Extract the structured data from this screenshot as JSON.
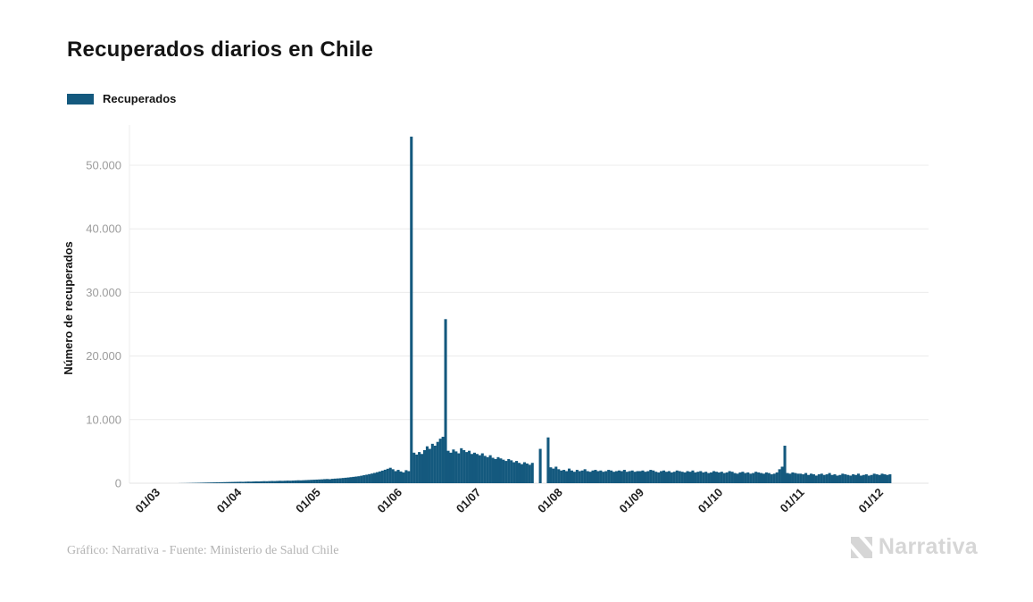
{
  "title": "Recuperados diarios en Chile",
  "legend": {
    "label": "Recuperados",
    "color": "#14597e"
  },
  "footer": {
    "credit": "Gráfico: Narrativa - Fuente: Ministerio de Salud Chile"
  },
  "logo": {
    "text": "Narrativa",
    "color": "#d6d6d6"
  },
  "chart_data": {
    "type": "bar",
    "title": "Recuperados diarios en Chile",
    "xlabel": "",
    "ylabel": "Número de recuperados",
    "series_name": "Recuperados",
    "bar_color": "#14597e",
    "grid": true,
    "legend_position": "top-left",
    "ylim": [
      0,
      55000
    ],
    "y_ticks": [
      {
        "value": 0,
        "label": "0"
      },
      {
        "value": 10000,
        "label": "10.000"
      },
      {
        "value": 20000,
        "label": "20.000"
      },
      {
        "value": 30000,
        "label": "30.000"
      },
      {
        "value": 40000,
        "label": "40.000"
      },
      {
        "value": 50000,
        "label": "50.000"
      }
    ],
    "x_unit": "day",
    "x_ticks": [
      {
        "day": 0,
        "label": "01/03"
      },
      {
        "day": 31,
        "label": "01/04"
      },
      {
        "day": 61,
        "label": "01/05"
      },
      {
        "day": 92,
        "label": "01/06"
      },
      {
        "day": 122,
        "label": "01/07"
      },
      {
        "day": 153,
        "label": "01/08"
      },
      {
        "day": 184,
        "label": "01/09"
      },
      {
        "day": 214,
        "label": "01/10"
      },
      {
        "day": 245,
        "label": "01/11"
      },
      {
        "day": 275,
        "label": "01/12"
      }
    ],
    "series": [
      {
        "name": "Recuperados",
        "values": [
          0,
          0,
          0,
          0,
          0,
          0,
          0,
          0,
          0,
          10,
          15,
          20,
          30,
          40,
          50,
          60,
          70,
          80,
          90,
          100,
          110,
          120,
          130,
          140,
          150,
          160,
          170,
          180,
          190,
          200,
          210,
          220,
          230,
          220,
          240,
          260,
          250,
          270,
          290,
          280,
          300,
          320,
          310,
          330,
          350,
          340,
          360,
          380,
          370,
          390,
          410,
          400,
          420,
          440,
          460,
          450,
          470,
          490,
          510,
          530,
          550,
          570,
          590,
          610,
          640,
          660,
          630,
          690,
          720,
          750,
          780,
          820,
          860,
          900,
          950,
          1000,
          1050,
          1100,
          1180,
          1260,
          1340,
          1430,
          1520,
          1620,
          1730,
          1850,
          1980,
          2120,
          2270,
          2430,
          2200,
          1900,
          2100,
          1850,
          1700,
          2050,
          1900,
          54500,
          4800,
          4500,
          4900,
          4600,
          5200,
          5800,
          5400,
          6200,
          5900,
          6500,
          7000,
          7300,
          25800,
          5100,
          4800,
          5300,
          5000,
          4700,
          5500,
          5200,
          4900,
          5100,
          4600,
          4800,
          4600,
          4400,
          4700,
          4300,
          4100,
          4400,
          4000,
          3800,
          4100,
          3900,
          3700,
          3500,
          3800,
          3600,
          3300,
          3500,
          3200,
          3000,
          3300,
          3100,
          2900,
          3200,
          0,
          0,
          5400,
          0,
          0,
          7200,
          2500,
          2300,
          2600,
          2200,
          2000,
          2100,
          1900,
          2300,
          2000,
          1800,
          2100,
          1900,
          2000,
          2200,
          1900,
          1800,
          2000,
          2100,
          1900,
          2000,
          1800,
          1900,
          2100,
          2000,
          1800,
          1900,
          2000,
          1900,
          2100,
          1800,
          1900,
          2000,
          1800,
          1900,
          1900,
          2000,
          1800,
          1900,
          2100,
          2000,
          1800,
          1700,
          1900,
          2000,
          1800,
          1900,
          1700,
          1800,
          2000,
          1900,
          1800,
          1700,
          1900,
          1800,
          2000,
          1700,
          1800,
          1900,
          1700,
          1800,
          1600,
          1700,
          1900,
          1800,
          1700,
          1800,
          1600,
          1700,
          1900,
          1800,
          1600,
          1500,
          1700,
          1800,
          1600,
          1700,
          1500,
          1600,
          1800,
          1700,
          1600,
          1500,
          1700,
          1600,
          1400,
          1500,
          1700,
          2200,
          2600,
          5900,
          1600,
          1500,
          1700,
          1600,
          1500,
          1500,
          1400,
          1600,
          1300,
          1500,
          1400,
          1200,
          1400,
          1500,
          1300,
          1400,
          1600,
          1300,
          1400,
          1200,
          1300,
          1500,
          1400,
          1300,
          1200,
          1400,
          1300,
          1500,
          1200,
          1300,
          1400,
          1200,
          1300,
          1500,
          1400,
          1300,
          1500,
          1400,
          1300,
          1400
        ]
      }
    ]
  }
}
